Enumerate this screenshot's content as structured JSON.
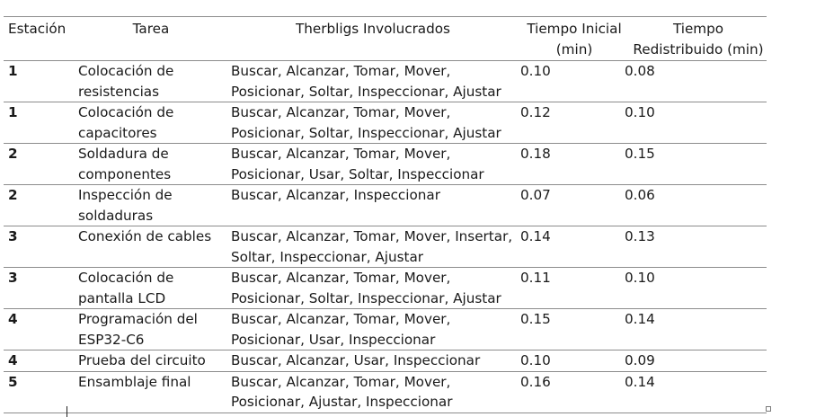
{
  "headers": {
    "station": "Estación",
    "task": "Tarea",
    "therbligs": "Therbligs Involucrados",
    "initial": "Tiempo Inicial (min)",
    "redistributed": "Tiempo Redistribuido (min)"
  },
  "rows": [
    {
      "station": "1",
      "task": "Colocación de resistencias",
      "therbligs": "Buscar, Alcanzar, Tomar, Mover, Posicionar, Soltar, Inspeccionar, Ajustar",
      "initial": "0.10",
      "redistributed": "0.08"
    },
    {
      "station": "1",
      "task": "Colocación de capacitores",
      "therbligs": "Buscar, Alcanzar, Tomar, Mover, Posicionar, Soltar, Inspeccionar, Ajustar",
      "initial": "0.12",
      "redistributed": "0.10"
    },
    {
      "station": "2",
      "task": "Soldadura de componentes",
      "therbligs": "Buscar, Alcanzar, Tomar, Mover, Posicionar, Usar, Soltar, Inspeccionar",
      "initial": "0.18",
      "redistributed": "0.15"
    },
    {
      "station": "2",
      "task": "Inspección de soldaduras",
      "therbligs": "Buscar, Alcanzar, Inspeccionar",
      "initial": "0.07",
      "redistributed": "0.06"
    },
    {
      "station": "3",
      "task": "Conexión de cables",
      "therbligs": "Buscar, Alcanzar, Tomar, Mover, Insertar, Soltar, Inspeccionar, Ajustar",
      "initial": "0.14",
      "redistributed": "0.13"
    },
    {
      "station": "3",
      "task": "Colocación de pantalla LCD",
      "therbligs": "Buscar, Alcanzar, Tomar, Mover, Posicionar, Soltar, Inspeccionar, Ajustar",
      "initial": "0.11",
      "redistributed": "0.10"
    },
    {
      "station": "4",
      "task": "Programación del ESP32-C6",
      "therbligs": "Buscar, Alcanzar, Tomar, Mover, Posicionar, Usar, Inspeccionar",
      "initial": "0.15",
      "redistributed": "0.14"
    },
    {
      "station": "4",
      "task": "Prueba del circuito",
      "therbligs": "Buscar, Alcanzar, Usar, Inspeccionar",
      "initial": "0.10",
      "redistributed": "0.09"
    },
    {
      "station": "5",
      "task": "Ensamblaje final",
      "therbligs": "Buscar, Alcanzar, Tomar, Mover, Posicionar, Ajustar, Inspeccionar",
      "initial": "0.16",
      "redistributed": "0.14"
    }
  ]
}
